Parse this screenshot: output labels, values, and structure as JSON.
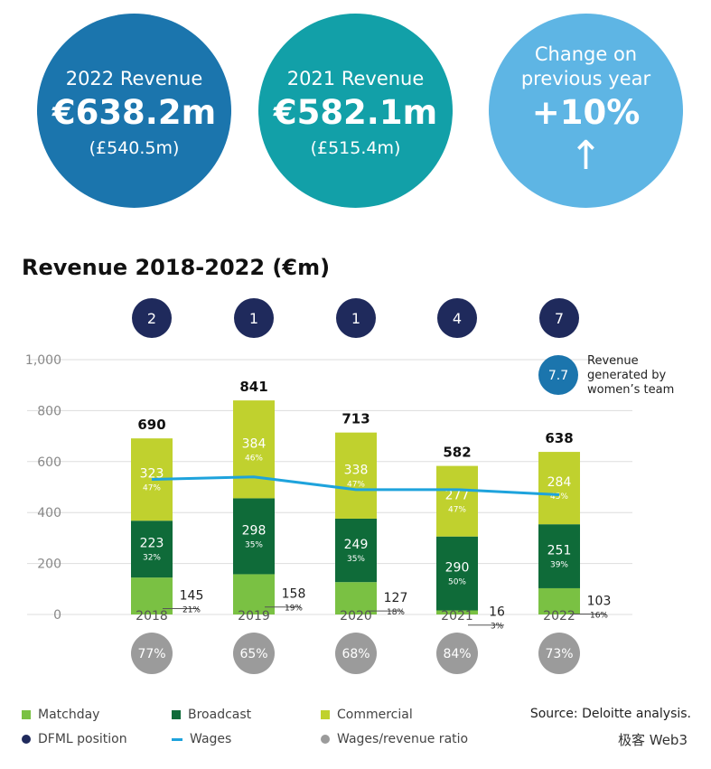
{
  "kpis": {
    "revenue_2022": {
      "label": "2022 Revenue",
      "value": "€638.2m",
      "sub": "(£540.5m)"
    },
    "revenue_2021": {
      "label": "2021 Revenue",
      "value": "€582.1m",
      "sub": "(£515.4m)"
    },
    "change": {
      "label_line1": "Change on",
      "label_line2": "previous year",
      "value": "+10%",
      "arrow": "↑"
    }
  },
  "colors": {
    "matchday": "#7ac143",
    "broadcast": "#0f6b39",
    "commercial": "#c0d12e",
    "position": "#1f2a5c",
    "wages": "#1ea3dc",
    "ratio": "#9b9b9b",
    "womens": "#1b75ad"
  },
  "chart_data": {
    "type": "bar",
    "stacked": true,
    "title": "Revenue 2018-2022 (€m)",
    "categories": [
      "2018",
      "2019",
      "2020",
      "2021",
      "2022"
    ],
    "ylim": [
      0,
      1000
    ],
    "yticks": [
      "0",
      "200",
      "400",
      "600",
      "800",
      "1,000"
    ],
    "grid": true,
    "series": [
      {
        "name": "Matchday",
        "values": [
          145,
          158,
          127,
          16,
          103
        ],
        "pct": [
          "21%",
          "19%",
          "18%",
          "3%",
          "16%"
        ]
      },
      {
        "name": "Broadcast",
        "values": [
          223,
          298,
          249,
          290,
          251
        ],
        "pct": [
          "32%",
          "35%",
          "35%",
          "50%",
          "39%"
        ]
      },
      {
        "name": "Commercial",
        "values": [
          323,
          384,
          338,
          277,
          284
        ],
        "pct": [
          "47%",
          "46%",
          "47%",
          "47%",
          "45%"
        ]
      }
    ],
    "totals": [
      "690",
      "841",
      "713",
      "582",
      "638"
    ],
    "dfml_position": [
      "2",
      "1",
      "1",
      "4",
      "7"
    ],
    "wages_line": [
      530,
      540,
      490,
      490,
      470
    ],
    "wages_ratio": [
      "77%",
      "65%",
      "68%",
      "84%",
      "73%"
    ],
    "womens_team": {
      "value": "7.7",
      "label_lines": [
        "Revenue",
        "generated by",
        "women’s team"
      ]
    }
  },
  "legend": {
    "matchday": "Matchday",
    "broadcast": "Broadcast",
    "commercial": "Commercial",
    "position": "DFML position",
    "wages": "Wages",
    "ratio": "Wages/revenue ratio"
  },
  "source": "Source: Deloitte analysis.",
  "watermark": "极客 Web3"
}
